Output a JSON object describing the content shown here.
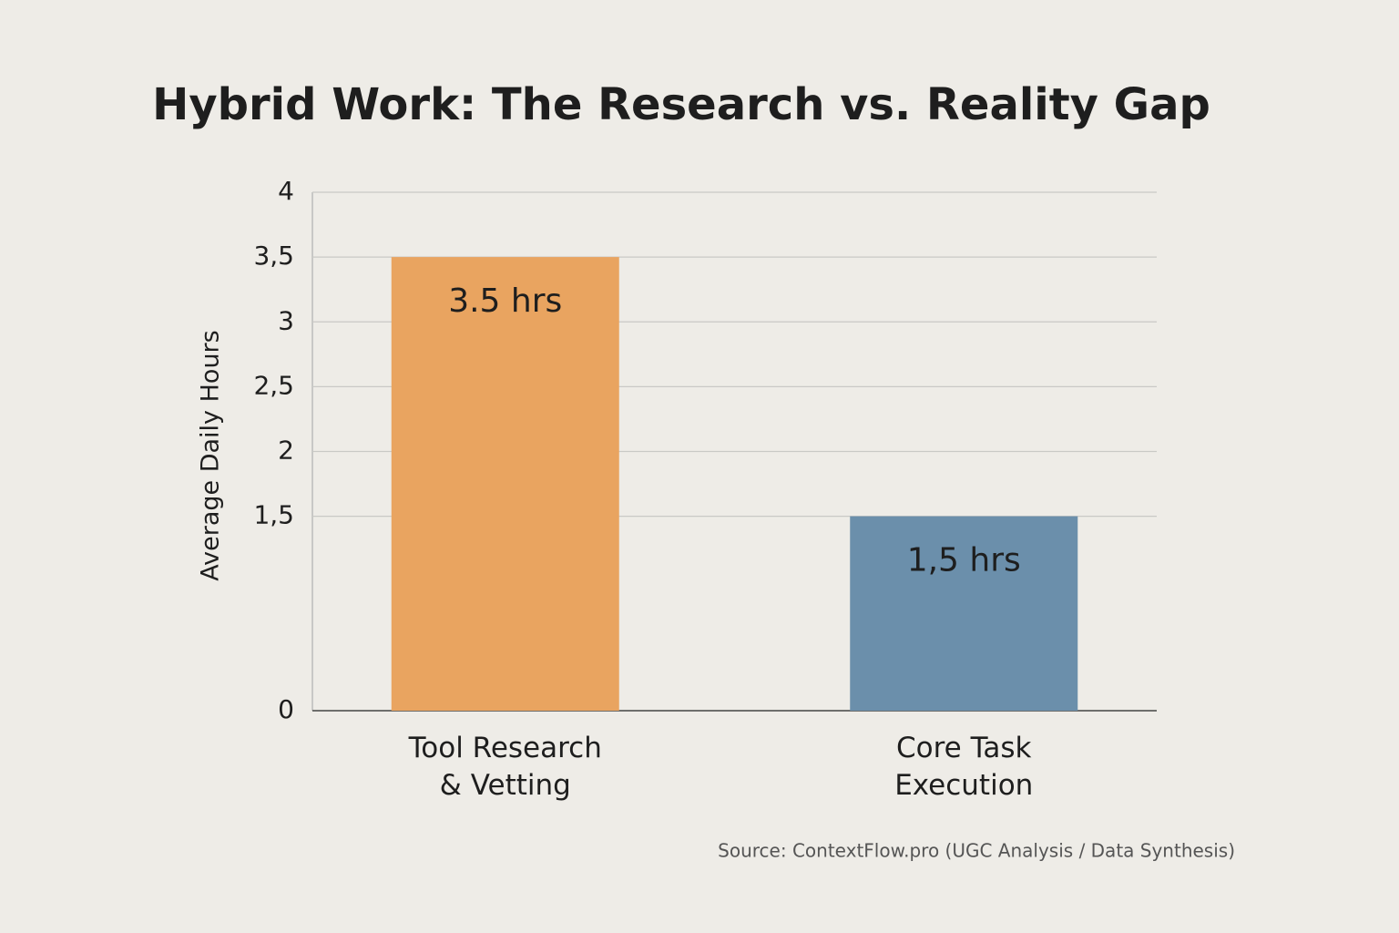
{
  "chart_data": {
    "type": "bar",
    "title": "Hybrid Work: The Research vs. Reality Gap",
    "y_label": "Average Daily Hours",
    "categories": [
      "Tool Research\n& Vetting",
      "Core Task\nExecution"
    ],
    "values": [
      3.5,
      1.5
    ],
    "value_labels": [
      "3.5 hrs",
      "1,5 hrs"
    ],
    "colors": [
      "#e9a460",
      "#6b8fab"
    ],
    "ylim": [
      0,
      4
    ],
    "yticks": [
      0,
      {
        "value": 1.5,
        "label": "1,5"
      },
      2,
      {
        "value": 2.5,
        "label": "2,5"
      },
      3,
      {
        "value": 3.5,
        "label": "3,5"
      },
      4
    ],
    "grid": true,
    "source": "Source: ContextFlow.pro (UGC Analysis / Data Synthesis)"
  }
}
